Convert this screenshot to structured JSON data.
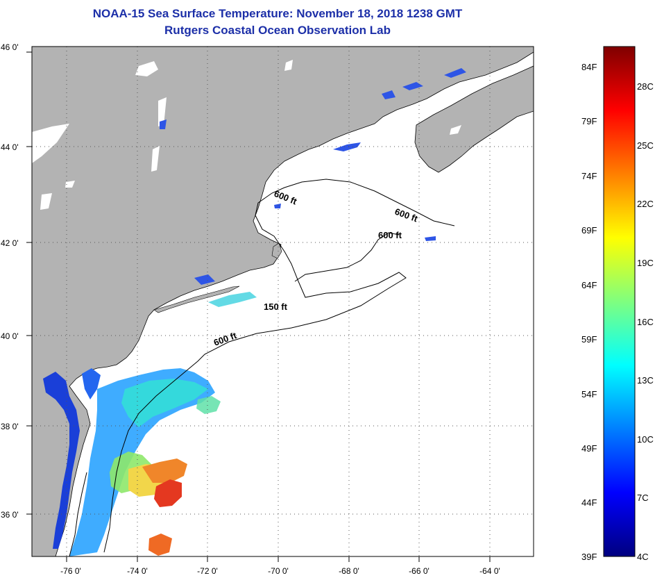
{
  "title": "NOAA-15 Sea Surface Temperature:  November 18, 2018 1238 GMT",
  "subtitle": "Rutgers Coastal Ocean Observation Lab",
  "lat_labels": [
    "46 0'",
    "44 0'",
    "42 0'",
    "40 0'",
    "38 0'",
    "36 0'"
  ],
  "lon_labels": [
    "-76 0'",
    "-74 0'",
    "-72 0'",
    "-70 0'",
    "-68 0'",
    "-66 0'",
    "-64 0'"
  ],
  "isobath_labels": [
    "600 ft",
    "600 ft",
    "600 ft",
    "150 ft",
    "600 ft"
  ],
  "colorbar": {
    "f_labels": [
      "84F",
      "79F",
      "74F",
      "69F",
      "64F",
      "59F",
      "54F",
      "49F",
      "44F"
    ],
    "c_labels": [
      "28C",
      "25C",
      "22C",
      "19C",
      "16C",
      "13C",
      "10C",
      "7C"
    ],
    "min_f": "39F",
    "min_c": "4C",
    "colors": [
      "#00007f",
      "#0000ff",
      "#007fff",
      "#00ffff",
      "#7fff7f",
      "#ffff00",
      "#ff7f00",
      "#ff0000",
      "#7f0000"
    ]
  },
  "colors": {
    "land": "#b3b3b3",
    "ocean": "#ffffff",
    "title": "#1c2fa8",
    "grid": "#555555"
  }
}
